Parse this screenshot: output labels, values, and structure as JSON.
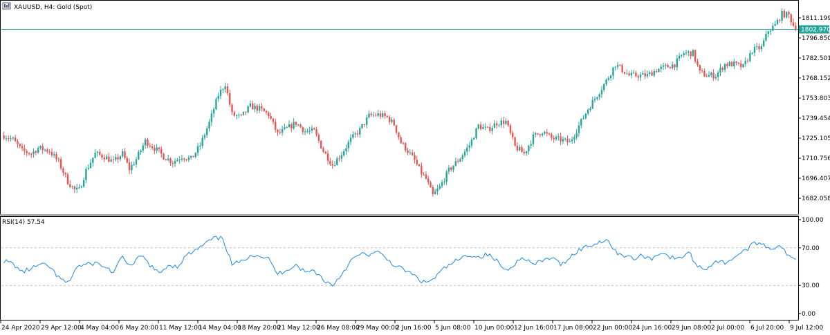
{
  "header": {
    "symbol_label": "XAUUSD, H4:  Gold (Spot)",
    "rsi_label": "RSI(14) 57.54"
  },
  "colors": {
    "bull": "#26a69a",
    "bear": "#ef5350",
    "rsi_line": "#1e88e5",
    "price_line": "#26a69a",
    "price_tag_bg": "#26a69a",
    "level_line": "#bdbdbd"
  },
  "chart_data": [
    {
      "type": "candlestick",
      "title": "XAUUSD, H4:  Gold (Spot)",
      "ylim": [
        1671.2,
        1823.0
      ],
      "y_ticks": [
        "1811.199",
        "1796.850",
        "1782.501",
        "1768.152",
        "1753.803",
        "1739.454",
        "1725.105",
        "1710.756",
        "1696.407",
        "1682.058"
      ],
      "current_price": "1802.970",
      "x_ticks": [
        "24 Apr 2020",
        "29 Apr 12:00",
        "4 May 04:00",
        "6 May 20:00",
        "11 May 12:00",
        "14 May 04:00",
        "18 May 20:00",
        "21 May 12:00",
        "26 May 08:00",
        "29 May 00:00",
        "2 Jun 16:00",
        "5 Jun 08:00",
        "10 Jun 00:00",
        "12 Jun 16:00",
        "17 Jun 08:00",
        "22 Jun 00:00",
        "24 Jun 16:00",
        "29 Jun 08:00",
        "2 Jul 00:00",
        "6 Jul 20:00",
        "9 Jul 12:00"
      ],
      "close_anchors": [
        [
          0,
          1727
        ],
        [
          4,
          1724
        ],
        [
          8,
          1716
        ],
        [
          12,
          1714
        ],
        [
          15,
          1718
        ],
        [
          20,
          1716
        ],
        [
          24,
          1708
        ],
        [
          28,
          1694
        ],
        [
          31,
          1688
        ],
        [
          33,
          1688
        ],
        [
          36,
          1702
        ],
        [
          40,
          1714
        ],
        [
          44,
          1712
        ],
        [
          48,
          1708
        ],
        [
          52,
          1714
        ],
        [
          55,
          1703
        ],
        [
          58,
          1710
        ],
        [
          62,
          1723
        ],
        [
          66,
          1718
        ],
        [
          70,
          1712
        ],
        [
          74,
          1708
        ],
        [
          78,
          1712
        ],
        [
          82,
          1710
        ],
        [
          86,
          1720
        ],
        [
          90,
          1736
        ],
        [
          94,
          1756
        ],
        [
          97,
          1764
        ],
        [
          100,
          1742
        ],
        [
          104,
          1740
        ],
        [
          108,
          1748
        ],
        [
          112,
          1746
        ],
        [
          116,
          1742
        ],
        [
          120,
          1728
        ],
        [
          124,
          1732
        ],
        [
          128,
          1736
        ],
        [
          132,
          1730
        ],
        [
          136,
          1730
        ],
        [
          140,
          1716
        ],
        [
          144,
          1706
        ],
        [
          148,
          1714
        ],
        [
          152,
          1724
        ],
        [
          156,
          1731
        ],
        [
          160,
          1741
        ],
        [
          164,
          1742
        ],
        [
          168,
          1740
        ],
        [
          171,
          1735
        ],
        [
          174,
          1722
        ],
        [
          177,
          1716
        ],
        [
          180,
          1709
        ],
        [
          183,
          1700
        ],
        [
          185,
          1696
        ],
        [
          188,
          1684
        ],
        [
          191,
          1690
        ],
        [
          195,
          1702
        ],
        [
          200,
          1711
        ],
        [
          204,
          1720
        ],
        [
          208,
          1734
        ],
        [
          212,
          1731
        ],
        [
          216,
          1736
        ],
        [
          220,
          1737
        ],
        [
          224,
          1719
        ],
        [
          228,
          1714
        ],
        [
          232,
          1726
        ],
        [
          236,
          1730
        ],
        [
          240,
          1725
        ],
        [
          244,
          1724
        ],
        [
          248,
          1722
        ],
        [
          252,
          1734
        ],
        [
          256,
          1746
        ],
        [
          260,
          1756
        ],
        [
          264,
          1766
        ],
        [
          268,
          1778
        ],
        [
          271,
          1774
        ],
        [
          274,
          1770
        ],
        [
          278,
          1770
        ],
        [
          282,
          1770
        ],
        [
          286,
          1774
        ],
        [
          290,
          1776
        ],
        [
          294,
          1778
        ],
        [
          298,
          1786
        ],
        [
          302,
          1786
        ],
        [
          305,
          1772
        ],
        [
          308,
          1770
        ],
        [
          312,
          1770
        ],
        [
          316,
          1778
        ],
        [
          320,
          1778
        ],
        [
          324,
          1776
        ],
        [
          328,
          1788
        ],
        [
          332,
          1790
        ],
        [
          335,
          1802
        ],
        [
          338,
          1806
        ],
        [
          341,
          1814
        ],
        [
          344,
          1813
        ],
        [
          346,
          1806
        ],
        [
          347,
          1802.97
        ]
      ]
    },
    {
      "type": "line",
      "title": "RSI(14) 57.54",
      "ylim": [
        0,
        100
      ],
      "y_ticks": [
        "100.00",
        "70.00",
        "30.00",
        "0.00"
      ],
      "levels": [
        70,
        30
      ],
      "series": [
        {
          "values": [
            [
              0,
              56
            ],
            [
              4,
              53
            ],
            [
              8,
              44
            ],
            [
              12,
              48
            ],
            [
              16,
              52
            ],
            [
              20,
              50
            ],
            [
              24,
              38
            ],
            [
              28,
              32
            ],
            [
              32,
              50
            ],
            [
              36,
              52
            ],
            [
              40,
              54
            ],
            [
              44,
              50
            ],
            [
              48,
              44
            ],
            [
              52,
              60
            ],
            [
              56,
              50
            ],
            [
              60,
              62
            ],
            [
              64,
              52
            ],
            [
              68,
              42
            ],
            [
              72,
              52
            ],
            [
              76,
              50
            ],
            [
              80,
              62
            ],
            [
              84,
              67
            ],
            [
              88,
              74
            ],
            [
              92,
              80
            ],
            [
              96,
              80
            ],
            [
              100,
              52
            ],
            [
              104,
              55
            ],
            [
              108,
              63
            ],
            [
              112,
              62
            ],
            [
              116,
              58
            ],
            [
              120,
              42
            ],
            [
              124,
              47
            ],
            [
              128,
              52
            ],
            [
              132,
              44
            ],
            [
              136,
              46
            ],
            [
              140,
              36
            ],
            [
              144,
              30
            ],
            [
              148,
              42
            ],
            [
              152,
              56
            ],
            [
              156,
              63
            ],
            [
              160,
              63
            ],
            [
              164,
              65
            ],
            [
              168,
              58
            ],
            [
              172,
              50
            ],
            [
              176,
              46
            ],
            [
              180,
              40
            ],
            [
              184,
              33
            ],
            [
              188,
              36
            ],
            [
              192,
              46
            ],
            [
              196,
              53
            ],
            [
              200,
              58
            ],
            [
              204,
              63
            ],
            [
              208,
              60
            ],
            [
              212,
              63
            ],
            [
              216,
              56
            ],
            [
              220,
              46
            ],
            [
              224,
              54
            ],
            [
              228,
              60
            ],
            [
              232,
              52
            ],
            [
              236,
              56
            ],
            [
              240,
              60
            ],
            [
              244,
              52
            ],
            [
              248,
              60
            ],
            [
              252,
              68
            ],
            [
              256,
              72
            ],
            [
              260,
              75
            ],
            [
              264,
              80
            ],
            [
              268,
              66
            ],
            [
              272,
              62
            ],
            [
              276,
              58
            ],
            [
              280,
              62
            ],
            [
              284,
              58
            ],
            [
              288,
              66
            ],
            [
              292,
              60
            ],
            [
              296,
              58
            ],
            [
              300,
              66
            ],
            [
              304,
              50
            ],
            [
              308,
              48
            ],
            [
              312,
              56
            ],
            [
              316,
              54
            ],
            [
              320,
              60
            ],
            [
              324,
              66
            ],
            [
              328,
              73
            ],
            [
              332,
              76
            ],
            [
              336,
              68
            ],
            [
              340,
              74
            ],
            [
              344,
              60
            ],
            [
              347,
              57.54
            ]
          ]
        }
      ]
    }
  ]
}
